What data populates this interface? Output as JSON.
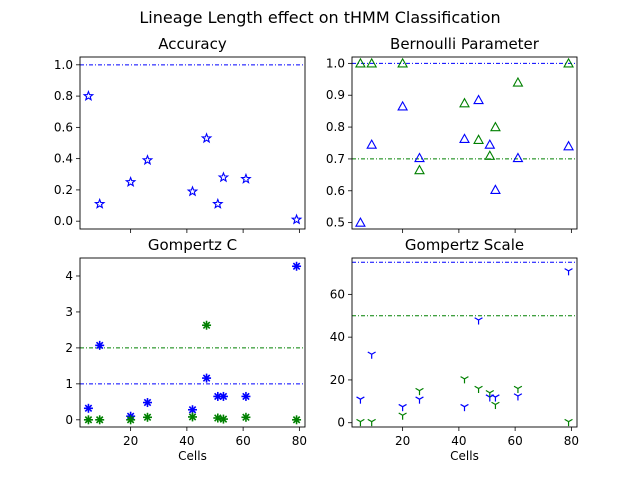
{
  "figure_title": "Lineage Length effect on tHMM Classification",
  "chart_data": [
    {
      "type": "scatter",
      "title": "Accuracy",
      "xlabel": "",
      "ylabel": "",
      "xlim": [
        2,
        82
      ],
      "ylim": [
        -0.05,
        1.05
      ],
      "xticks": [
        20,
        40,
        60,
        80
      ],
      "xtick_labels_shown": false,
      "yticks": [
        0.0,
        0.2,
        0.4,
        0.6,
        0.8,
        1.0
      ],
      "ytick_labels": [
        "0.0",
        "0.2",
        "0.4",
        "0.6",
        "0.8",
        "1.0"
      ],
      "series": [
        {
          "marker": "star",
          "color": "#0000ff",
          "x": [
            5,
            9,
            20,
            26,
            42,
            47,
            51,
            53,
            61,
            79
          ],
          "y": [
            0.8,
            0.11,
            0.25,
            0.39,
            0.19,
            0.53,
            0.11,
            0.28,
            0.27,
            0.01
          ]
        }
      ],
      "hlines": [
        {
          "y": 1.0,
          "color": "#0000ff"
        }
      ]
    },
    {
      "type": "scatter",
      "title": "Bernoulli Parameter",
      "xlabel": "",
      "ylabel": "",
      "xlim": [
        2,
        82
      ],
      "ylim": [
        0.48,
        1.02
      ],
      "xticks": [
        20,
        40,
        60,
        80
      ],
      "xtick_labels_shown": false,
      "yticks": [
        0.5,
        0.6,
        0.7,
        0.8,
        0.9,
        1.0
      ],
      "ytick_labels": [
        "0.5",
        "0.6",
        "0.7",
        "0.8",
        "0.9",
        "1.0"
      ],
      "series": [
        {
          "marker": "triangle",
          "color": "#0000ff",
          "x": [
            5,
            9,
            20,
            26,
            42,
            47,
            51,
            53,
            61,
            79
          ],
          "y": [
            0.5,
            0.745,
            0.865,
            0.703,
            0.763,
            0.885,
            0.745,
            0.603,
            0.703,
            0.74
          ]
        },
        {
          "marker": "triangle",
          "color": "#008000",
          "x": [
            5,
            9,
            20,
            26,
            42,
            47,
            51,
            53,
            61,
            79
          ],
          "y": [
            1.0,
            1.0,
            1.0,
            0.665,
            0.875,
            0.76,
            0.71,
            0.8,
            0.94,
            1.0
          ]
        }
      ],
      "hlines": [
        {
          "y": 1.0,
          "color": "#0000ff"
        },
        {
          "y": 0.7,
          "color": "#008000"
        }
      ]
    },
    {
      "type": "scatter",
      "title": "Gompertz C",
      "xlabel": "Cells",
      "ylabel": "",
      "xlim": [
        2,
        82
      ],
      "ylim": [
        -0.2,
        4.5
      ],
      "xticks": [
        20,
        40,
        60,
        80
      ],
      "xtick_labels": [
        "20",
        "40",
        "60",
        "80"
      ],
      "yticks": [
        0,
        1,
        2,
        3,
        4
      ],
      "ytick_labels": [
        "0",
        "1",
        "2",
        "3",
        "4"
      ],
      "series": [
        {
          "marker": "asterisk",
          "color": "#0000ff",
          "x": [
            5,
            9,
            20,
            26,
            42,
            47,
            51,
            53,
            61,
            79
          ],
          "y": [
            0.32,
            2.07,
            0.1,
            0.48,
            0.28,
            1.16,
            0.65,
            0.65,
            0.65,
            4.27
          ]
        },
        {
          "marker": "asterisk",
          "color": "#008000",
          "x": [
            5,
            9,
            20,
            26,
            42,
            47,
            51,
            53,
            61,
            79
          ],
          "y": [
            0.0,
            0.0,
            0.0,
            0.07,
            0.08,
            2.63,
            0.05,
            0.02,
            0.07,
            0.0
          ]
        }
      ],
      "hlines": [
        {
          "y": 1.0,
          "color": "#0000ff"
        },
        {
          "y": 2.0,
          "color": "#008000"
        }
      ]
    },
    {
      "type": "scatter",
      "title": "Gompertz Scale",
      "xlabel": "Cells",
      "ylabel": "",
      "xlim": [
        2,
        82
      ],
      "ylim": [
        -2,
        77
      ],
      "xticks": [
        20,
        40,
        60,
        80
      ],
      "xtick_labels": [
        "20",
        "40",
        "60",
        "80"
      ],
      "yticks": [
        0,
        20,
        40,
        60
      ],
      "ytick_labels": [
        "0",
        "20",
        "40",
        "60"
      ],
      "series": [
        {
          "marker": "tri_down",
          "color": "#0000ff",
          "x": [
            5,
            9,
            20,
            26,
            42,
            47,
            51,
            53,
            61,
            79
          ],
          "y": [
            11,
            32,
            7.5,
            11,
            7.5,
            48,
            12,
            12,
            12.5,
            71
          ]
        },
        {
          "marker": "tri_down",
          "color": "#008000",
          "x": [
            5,
            9,
            20,
            26,
            42,
            47,
            51,
            53,
            61,
            79
          ],
          "y": [
            0.5,
            0.5,
            3.5,
            15,
            20.5,
            16,
            14,
            8.5,
            16,
            0.5
          ]
        }
      ],
      "hlines": [
        {
          "y": 75,
          "color": "#0000ff"
        },
        {
          "y": 50,
          "color": "#008000"
        }
      ]
    }
  ]
}
